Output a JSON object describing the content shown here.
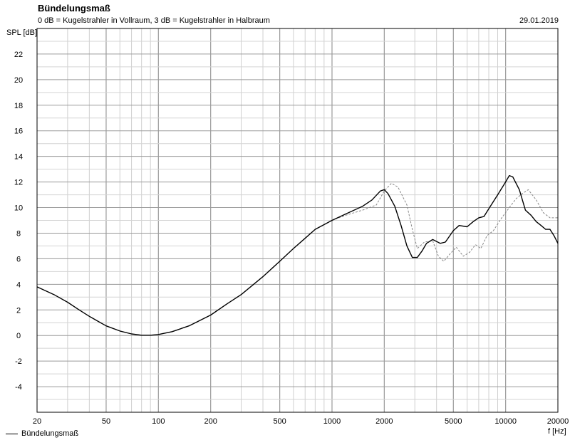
{
  "header": {
    "title": "Bündelungsmaß",
    "subtitle": "0 dB = Kugelstrahler in Vollraum, 3 dB = Kugelstrahler in Halbraum",
    "date": "29.01.2019"
  },
  "chart_data": {
    "type": "line",
    "title": "Bündelungsmaß",
    "xlabel": "f [Hz]",
    "ylabel": "SPL [dB]",
    "xscale": "log",
    "xlim": [
      20,
      20000
    ],
    "ylim": [
      -6,
      24
    ],
    "grid": true,
    "legend": "bottom-left",
    "x_ticks": [
      20,
      50,
      100,
      200,
      500,
      1000,
      2000,
      5000,
      10000,
      20000
    ],
    "y_ticks": [
      -4,
      -2,
      0,
      2,
      4,
      6,
      8,
      10,
      12,
      14,
      16,
      18,
      20,
      22
    ],
    "series": [
      {
        "name": "Bündelungsmaß",
        "style": "solid",
        "color": "#000000",
        "points": [
          [
            20,
            3.8
          ],
          [
            25,
            3.2
          ],
          [
            30,
            2.6
          ],
          [
            35,
            2.0
          ],
          [
            40,
            1.5
          ],
          [
            45,
            1.1
          ],
          [
            50,
            0.75
          ],
          [
            60,
            0.35
          ],
          [
            70,
            0.12
          ],
          [
            80,
            0.02
          ],
          [
            90,
            0.02
          ],
          [
            100,
            0.08
          ],
          [
            120,
            0.3
          ],
          [
            150,
            0.75
          ],
          [
            200,
            1.6
          ],
          [
            250,
            2.5
          ],
          [
            300,
            3.2
          ],
          [
            400,
            4.6
          ],
          [
            500,
            5.8
          ],
          [
            600,
            6.8
          ],
          [
            700,
            7.6
          ],
          [
            800,
            8.3
          ],
          [
            1000,
            9.0
          ],
          [
            1200,
            9.5
          ],
          [
            1500,
            10.1
          ],
          [
            1700,
            10.6
          ],
          [
            1900,
            11.3
          ],
          [
            2000,
            11.4
          ],
          [
            2100,
            11.1
          ],
          [
            2300,
            10.1
          ],
          [
            2500,
            8.6
          ],
          [
            2700,
            7.0
          ],
          [
            2900,
            6.1
          ],
          [
            3100,
            6.1
          ],
          [
            3300,
            6.6
          ],
          [
            3500,
            7.2
          ],
          [
            3800,
            7.5
          ],
          [
            4200,
            7.2
          ],
          [
            4500,
            7.3
          ],
          [
            5000,
            8.2
          ],
          [
            5400,
            8.6
          ],
          [
            6000,
            8.5
          ],
          [
            6500,
            8.9
          ],
          [
            7000,
            9.2
          ],
          [
            7500,
            9.3
          ],
          [
            8000,
            9.9
          ],
          [
            9000,
            11.0
          ],
          [
            10000,
            12.0
          ],
          [
            10500,
            12.5
          ],
          [
            11000,
            12.4
          ],
          [
            12000,
            11.4
          ],
          [
            13000,
            9.8
          ],
          [
            14000,
            9.4
          ],
          [
            15000,
            8.9
          ],
          [
            16000,
            8.6
          ],
          [
            17000,
            8.3
          ],
          [
            18000,
            8.3
          ],
          [
            19000,
            7.8
          ],
          [
            20000,
            7.2
          ]
        ]
      },
      {
        "name": "",
        "style": "dashed",
        "color": "#888888",
        "points": [
          [
            1000,
            9.0
          ],
          [
            1200,
            9.4
          ],
          [
            1500,
            9.8
          ],
          [
            1800,
            10.2
          ],
          [
            2000,
            11.3
          ],
          [
            2200,
            11.9
          ],
          [
            2400,
            11.6
          ],
          [
            2700,
            10.2
          ],
          [
            2900,
            8.3
          ],
          [
            3100,
            6.8
          ],
          [
            3400,
            7.3
          ],
          [
            3800,
            7.4
          ],
          [
            4100,
            6.2
          ],
          [
            4400,
            5.8
          ],
          [
            4800,
            6.4
          ],
          [
            5200,
            6.9
          ],
          [
            5700,
            6.2
          ],
          [
            6200,
            6.5
          ],
          [
            6700,
            7.1
          ],
          [
            7200,
            6.8
          ],
          [
            7800,
            7.8
          ],
          [
            8500,
            8.2
          ],
          [
            9500,
            9.2
          ],
          [
            10500,
            10.0
          ],
          [
            11500,
            10.7
          ],
          [
            12500,
            11.1
          ],
          [
            13500,
            11.4
          ],
          [
            15000,
            10.6
          ],
          [
            16500,
            9.6
          ],
          [
            18000,
            9.2
          ],
          [
            20000,
            9.2
          ]
        ]
      }
    ]
  }
}
